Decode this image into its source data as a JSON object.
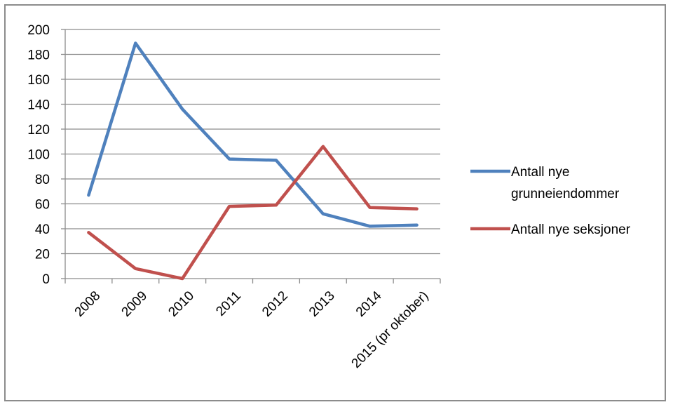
{
  "chart_data": {
    "type": "line",
    "categories": [
      "2008",
      "2009",
      "2010",
      "2011",
      "2012",
      "2013",
      "2014",
      "2015 (pr oktober)"
    ],
    "series": [
      {
        "name": "Antall nye grunneiendommer",
        "legend_lines": [
          "Antall nye",
          "grunneiendommer"
        ],
        "color": "#4f81bd",
        "values": [
          67,
          189,
          136,
          96,
          95,
          52,
          42,
          43
        ]
      },
      {
        "name": "Antall nye seksjoner",
        "legend_lines": [
          "Antall nye seksjoner"
        ],
        "color": "#c0504d",
        "values": [
          37,
          8,
          0,
          58,
          59,
          106,
          57,
          56
        ]
      }
    ],
    "ylim": [
      0,
      200
    ],
    "yticks": [
      0,
      20,
      40,
      60,
      80,
      100,
      120,
      140,
      160,
      180,
      200
    ],
    "grid": true,
    "legend": "right",
    "title": "",
    "xlabel": "",
    "ylabel": ""
  }
}
